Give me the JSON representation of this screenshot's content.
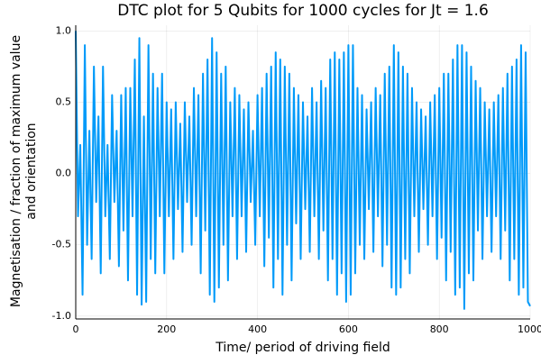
{
  "chart_data": {
    "type": "line",
    "title": "DTC plot for 5 Qubits for 1000 cycles for Jt = 1.6",
    "xlabel": "Time/ period of driving field",
    "ylabel": [
      "Magnetisation / fraction of maximum value",
      "and orientation"
    ],
    "xlim": [
      0,
      1000
    ],
    "ylim": [
      -1.02,
      1.04
    ],
    "xticks": [
      0,
      200,
      400,
      600,
      800,
      1000
    ],
    "yticks": [
      {
        "value": -1,
        "label": "-1.0"
      },
      -0.5,
      {
        "value": 0,
        "label": "0.0"
      },
      0.5,
      {
        "value": 1,
        "label": "1.0"
      }
    ],
    "grid": true,
    "x": [
      0,
      5,
      10,
      15,
      20,
      25,
      30,
      35,
      40,
      45,
      50,
      55,
      60,
      65,
      70,
      75,
      80,
      85,
      90,
      95,
      100,
      105,
      110,
      115,
      120,
      125,
      130,
      135,
      140,
      145,
      150,
      155,
      160,
      165,
      170,
      175,
      180,
      185,
      190,
      195,
      200,
      205,
      210,
      215,
      220,
      225,
      230,
      235,
      240,
      245,
      250,
      255,
      260,
      265,
      270,
      275,
      280,
      285,
      290,
      295,
      300,
      305,
      310,
      315,
      320,
      325,
      330,
      335,
      340,
      345,
      350,
      355,
      360,
      365,
      370,
      375,
      380,
      385,
      390,
      395,
      400,
      405,
      410,
      415,
      420,
      425,
      430,
      435,
      440,
      445,
      450,
      455,
      460,
      465,
      470,
      475,
      480,
      485,
      490,
      495,
      500,
      505,
      510,
      515,
      520,
      525,
      530,
      535,
      540,
      545,
      550,
      555,
      560,
      565,
      570,
      575,
      580,
      585,
      590,
      595,
      600,
      605,
      610,
      615,
      620,
      625,
      630,
      635,
      640,
      645,
      650,
      655,
      660,
      665,
      670,
      675,
      680,
      685,
      690,
      695,
      700,
      705,
      710,
      715,
      720,
      725,
      730,
      735,
      740,
      745,
      750,
      755,
      760,
      765,
      770,
      775,
      780,
      785,
      790,
      795,
      800,
      805,
      810,
      815,
      820,
      825,
      830,
      835,
      840,
      845,
      850,
      855,
      860,
      865,
      870,
      875,
      880,
      885,
      890,
      895,
      900,
      905,
      910,
      915,
      920,
      925,
      930,
      935,
      940,
      945,
      950,
      955,
      960,
      965,
      970,
      975,
      980,
      985,
      990,
      995,
      1000
    ],
    "series": [
      {
        "color": "#009af9",
        "values": [
          1.0,
          -0.3,
          0.2,
          -0.85,
          0.9,
          -0.5,
          0.3,
          -0.6,
          0.75,
          -0.2,
          0.4,
          -0.7,
          0.75,
          -0.3,
          0.2,
          -0.6,
          0.55,
          -0.2,
          0.3,
          -0.65,
          0.55,
          -0.4,
          0.6,
          -0.75,
          0.6,
          -0.3,
          0.8,
          -0.85,
          0.95,
          -0.92,
          0.4,
          -0.9,
          0.9,
          -0.6,
          0.7,
          -0.7,
          0.6,
          -0.3,
          0.7,
          -0.7,
          0.5,
          -0.3,
          0.45,
          -0.6,
          0.5,
          -0.25,
          0.35,
          -0.55,
          0.5,
          -0.2,
          0.4,
          -0.5,
          0.6,
          -0.3,
          0.55,
          -0.7,
          0.7,
          -0.4,
          0.8,
          -0.85,
          0.95,
          -0.9,
          0.85,
          -0.8,
          0.7,
          -0.5,
          0.75,
          -0.75,
          0.5,
          -0.3,
          0.6,
          -0.6,
          0.55,
          -0.3,
          0.45,
          -0.55,
          0.5,
          -0.2,
          0.3,
          -0.5,
          0.55,
          -0.3,
          0.6,
          -0.65,
          0.7,
          -0.45,
          0.75,
          -0.8,
          0.85,
          -0.6,
          0.8,
          -0.85,
          0.75,
          -0.5,
          0.7,
          -0.75,
          0.6,
          -0.35,
          0.55,
          -0.6,
          0.5,
          -0.25,
          0.4,
          -0.55,
          0.6,
          -0.3,
          0.5,
          -0.6,
          0.65,
          -0.4,
          0.6,
          -0.75,
          0.8,
          -0.6,
          0.85,
          -0.85,
          0.8,
          -0.7,
          0.85,
          -0.9,
          0.9,
          -0.85,
          0.9,
          -0.7,
          0.6,
          -0.5,
          0.55,
          -0.6,
          0.45,
          -0.25,
          0.5,
          -0.55,
          0.6,
          -0.3,
          0.55,
          -0.65,
          0.7,
          -0.5,
          0.75,
          -0.8,
          0.9,
          -0.85,
          0.85,
          -0.8,
          0.75,
          -0.6,
          0.7,
          -0.7,
          0.6,
          -0.3,
          0.5,
          -0.55,
          0.45,
          -0.25,
          0.4,
          -0.5,
          0.5,
          -0.3,
          0.55,
          -0.6,
          0.6,
          -0.45,
          0.7,
          -0.75,
          0.7,
          -0.55,
          0.8,
          -0.85,
          0.9,
          -0.8,
          0.9,
          -0.95,
          0.85,
          -0.7,
          0.75,
          -0.75,
          0.65,
          -0.4,
          0.6,
          -0.6,
          0.5,
          -0.3,
          0.45,
          -0.55,
          0.5,
          -0.3,
          0.55,
          -0.6,
          0.6,
          -0.4,
          0.7,
          -0.75,
          0.75,
          -0.6,
          0.8,
          -0.85,
          0.9,
          -0.8,
          0.85,
          -0.9,
          -0.93
        ]
      }
    ]
  }
}
